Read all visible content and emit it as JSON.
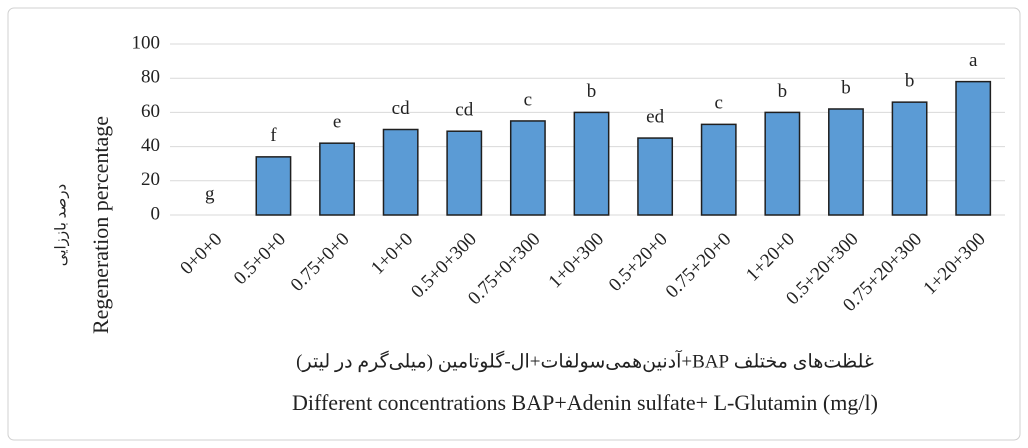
{
  "chart_data": {
    "type": "bar",
    "y_axis_label": "Regeneration percentage",
    "y_axis_label_fa": "درصد باززایی",
    "x_axis_label_fa": "غلظت‌های مختلف BAP+آدنین‌همی‌سولفات+ال-گلوتامین (میلی‌گرم در لیتر)",
    "x_axis_label": "Different concentrations BAP+Adenin sulfate+ L-Glutamin (mg/l)",
    "categories": [
      "0+0+0",
      "0.5+0+0",
      "0.75+0+0",
      "1+0+0",
      "0.5+0+300",
      "0.75+0+300",
      "1+0+300",
      "0.5+20+0",
      "0.75+20+0",
      "1+20+0",
      "0.5+20+300",
      "0.75+20+300",
      "1+20+300"
    ],
    "values": [
      0,
      34,
      42,
      50,
      49,
      55,
      60,
      45,
      53,
      60,
      62,
      66,
      78
    ],
    "significance_letters": [
      "g",
      "f",
      "e",
      "cd",
      "cd",
      "c",
      "b",
      "ed",
      "c",
      "b",
      "b",
      "b",
      "a"
    ],
    "color": "#5b9bd5",
    "ylim": [
      0,
      100
    ],
    "yticks": [
      0,
      20,
      40,
      60,
      80,
      100
    ],
    "grid": true
  }
}
